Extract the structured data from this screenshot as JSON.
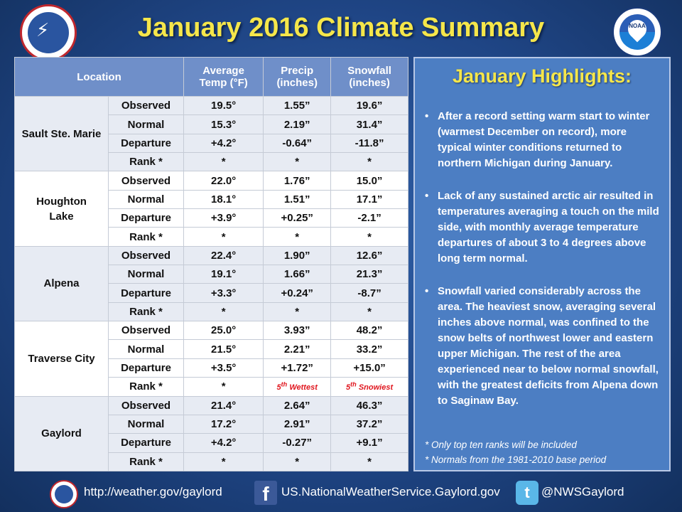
{
  "title": "January 2016 Climate Summary",
  "table": {
    "headers": {
      "location": "Location",
      "temp": [
        "Average",
        "Temp (°F)"
      ],
      "precip": [
        "Precip",
        "(inches)"
      ],
      "snow": [
        "Snowfall",
        "(inches)"
      ]
    },
    "row_labels": [
      "Observed",
      "Normal",
      "Departure",
      "Rank *"
    ],
    "locations": [
      {
        "name": [
          "Sault Ste. Marie"
        ],
        "rows": [
          [
            "19.5°",
            "1.55”",
            "19.6”"
          ],
          [
            "15.3°",
            "2.19”",
            "31.4”"
          ],
          [
            "+4.2°",
            "-0.64”",
            "-11.8”"
          ],
          [
            "*",
            "*",
            "*"
          ]
        ]
      },
      {
        "name": [
          "Houghton",
          "Lake"
        ],
        "rows": [
          [
            "22.0°",
            "1.76”",
            "15.0”"
          ],
          [
            "18.1°",
            "1.51”",
            "17.1”"
          ],
          [
            "+3.9°",
            "+0.25”",
            "-2.1”"
          ],
          [
            "*",
            "*",
            "*"
          ]
        ]
      },
      {
        "name": [
          "Alpena"
        ],
        "rows": [
          [
            "22.4°",
            "1.90”",
            "12.6”"
          ],
          [
            "19.1°",
            "1.66”",
            "21.3”"
          ],
          [
            "+3.3°",
            "+0.24”",
            "-8.7”"
          ],
          [
            "*",
            "*",
            "*"
          ]
        ]
      },
      {
        "name": [
          "Traverse City"
        ],
        "rows": [
          [
            "25.0°",
            "3.93”",
            "48.2”"
          ],
          [
            "21.5°",
            "2.21”",
            "33.2”"
          ],
          [
            "+3.5°",
            "+1.72”",
            "+15.0”"
          ],
          [
            "*",
            {
              "ord": "5",
              "sup": "th",
              "text": " Wettest"
            },
            {
              "ord": "5",
              "sup": "th",
              "text": " Snowiest"
            }
          ]
        ]
      },
      {
        "name": [
          "Gaylord"
        ],
        "rows": [
          [
            "21.4°",
            "2.64”",
            "46.3”"
          ],
          [
            "17.2°",
            "2.91”",
            "37.2”"
          ],
          [
            "+4.2°",
            "-0.27”",
            "+9.1”"
          ],
          [
            "*",
            "*",
            "*"
          ]
        ]
      }
    ]
  },
  "highlights": {
    "title": "January Highlights:",
    "bullets": [
      "After a record setting warm start to winter (warmest December on record), more typical winter conditions returned to northern Michigan during January.",
      "Lack of any sustained arctic air resulted in temperatures averaging a touch on the mild side, with monthly average temperature departures of about 3 to 4 degrees above long term normal.",
      "Snowfall varied considerably across the area.  The heaviest snow, averaging several inches above normal, was confined to the snow belts of northwest lower and eastern upper Michigan.  The rest of the area experienced near to below normal snowfall, with the greatest deficits from Alpena down to Saginaw Bay."
    ],
    "notes": [
      "*  Only top ten ranks will be included",
      "*  Normals from the 1981-2010 base period"
    ]
  },
  "logos": {
    "nws": "NATIONAL WEATHER SERVICE",
    "noaa": "NOAA"
  },
  "footer": {
    "website": "http://weather.gov/gaylord",
    "facebook": "US.NationalWeatherService.Gaylord.gov",
    "twitter": "@NWSGaylord"
  },
  "icons": [
    "nws-logo-icon",
    "noaa-logo-icon",
    "facebook-icon",
    "twitter-icon"
  ],
  "colors": {
    "title": "#f5e64a",
    "header_bg": "#6f8fc9",
    "highlight_panel": "#4c7ec3",
    "rank_red": "#e0161e"
  }
}
